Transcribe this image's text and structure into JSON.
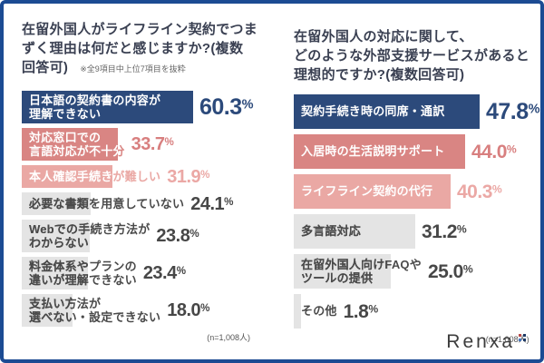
{
  "frame_color": "#1c4b93",
  "palette": {
    "bar": {
      "navy": "#2c4a7b",
      "salmon": "#d98583",
      "pink": "#eaa8a4",
      "gray": "#e4e4e4"
    },
    "label_inside": {
      "navy": "#ffffff",
      "salmon": "#ffffff",
      "pink": "#ffffff",
      "gray": "#4a4a4a"
    },
    "label_outside": {
      "navy": "#2c4a7b",
      "salmon": "#d98583",
      "pink": "#eaa8a4",
      "gray": "#4a4a4a"
    },
    "value_text": {
      "navy": "#2c4a7b",
      "salmon": "#d87f7f",
      "pink": "#eba8a5",
      "gray": "#474747"
    },
    "title_text": "#3a4052",
    "note_text": "#666666",
    "sample_text": "#555555"
  },
  "chart_data": [
    {
      "type": "bar",
      "orientation": "horizontal",
      "title": "在留外国人がライフライン契約でつまずく理由は何だと感じますか?(複数回答可)",
      "title_lines": [
        "在留外国人がライフライン契約でつま",
        "ずく理由は何だと感じますか?(複数",
        "回答可)"
      ],
      "note": "※全9項目中上位7項目を抜粋",
      "sample_label": "(n=1,008人)",
      "unit": "%",
      "xlim": [
        0,
        65
      ],
      "rows": [
        {
          "label": "日本語の契約書の内容が理解できない",
          "label_lines": [
            "日本語の契約書の内容が",
            "理解できない"
          ],
          "value": 60.3,
          "color": "navy"
        },
        {
          "label": "対応窓口での言語対応が不十分",
          "label_lines": [
            "対応窓口での",
            "言語対応が不十分"
          ],
          "value": 33.7,
          "color": "salmon"
        },
        {
          "label": "本人確認手続きが難しい",
          "label_lines": [
            "本人確認手続きが難しい"
          ],
          "value": 31.9,
          "color": "pink"
        },
        {
          "label": "必要な書類を用意していない",
          "label_lines": [
            "必要な書類を用意していない"
          ],
          "value": 24.1,
          "color": "gray"
        },
        {
          "label": "Webでの手続き方法がわからない",
          "label_lines": [
            "Webでの手続き方法が",
            "わからない"
          ],
          "value": 23.8,
          "color": "gray"
        },
        {
          "label": "料金体系やプランの違いが理解できない",
          "label_lines": [
            "料金体系やプランの",
            "違いが理解できない"
          ],
          "value": 23.4,
          "color": "gray"
        },
        {
          "label": "支払い方法が選べない・設定できない",
          "label_lines": [
            "支払い方法が",
            "選べない・設定できない"
          ],
          "value": 18.0,
          "color": "gray"
        }
      ]
    },
    {
      "type": "bar",
      "orientation": "horizontal",
      "title": "在留外国人の対応に関して、どのような外部支援サービスがあると理想的ですか?(複数回答可)",
      "title_lines": [
        "在留外国人の対応に関して、",
        "どのような外部支援サービスがあると",
        "理想的ですか?(複数回答可)"
      ],
      "note": "",
      "sample_label": "(n=1,008人)",
      "unit": "%",
      "xlim": [
        0,
        50
      ],
      "rows": [
        {
          "label": "契約手続き時の同席・通訳",
          "label_lines": [
            "契約手続き時の同席・通訳"
          ],
          "value": 47.8,
          "color": "navy"
        },
        {
          "label": "入居時の生活説明サポート",
          "label_lines": [
            "入居時の生活説明サポート"
          ],
          "value": 44.0,
          "color": "salmon"
        },
        {
          "label": "ライフライン契約の代行",
          "label_lines": [
            "ライフライン契約の代行"
          ],
          "value": 40.3,
          "color": "pink"
        },
        {
          "label": "多言語対応",
          "label_lines": [
            "多言語対応"
          ],
          "value": 31.2,
          "color": "gray"
        },
        {
          "label": "在留外国人向けFAQやツールの提供",
          "label_lines": [
            "在留外国人向けFAQや",
            "ツールの提供"
          ],
          "value": 25.0,
          "color": "gray"
        },
        {
          "label": "その他",
          "label_lines": [
            "その他"
          ],
          "value": 1.8,
          "color": "gray"
        }
      ]
    }
  ],
  "logo": {
    "text": "Renxa",
    "dot_colors": [
      "#b84a48",
      "#1e3a66",
      "#4a79c0",
      "#1e3a66"
    ]
  }
}
